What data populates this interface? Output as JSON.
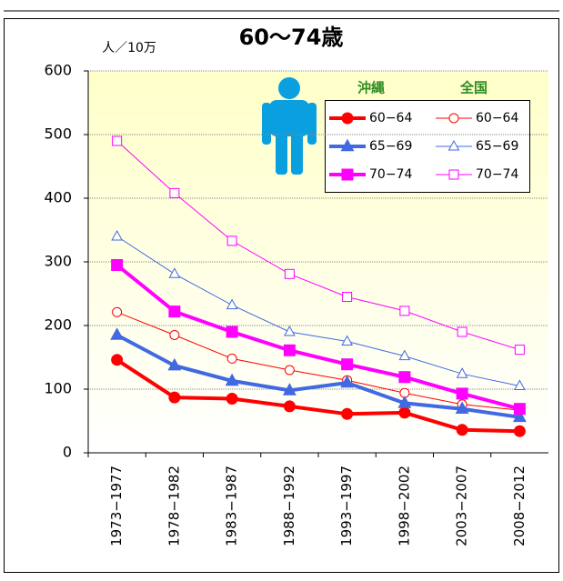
{
  "chart_data": {
    "type": "line",
    "title": "60〜74歳",
    "y_label": "人／10万",
    "categories": [
      "1973−1977",
      "1978−1982",
      "1983−1987",
      "1988−1992",
      "1993−1997",
      "1998−2002",
      "2003−2007",
      "2008−2012"
    ],
    "legend_titles": [
      "沖縄",
      "全国"
    ],
    "series": [
      {
        "name": "60−64",
        "color": "#ff0000",
        "marker": "circle",
        "hollow": false,
        "values": [
          146,
          87,
          85,
          73,
          61,
          63,
          36,
          34
        ]
      },
      {
        "name": "65−69",
        "color": "#4169e1",
        "marker": "triangle",
        "hollow": false,
        "values": [
          185,
          137,
          113,
          98,
          110,
          78,
          69,
          56
        ]
      },
      {
        "name": "70−74",
        "color": "#ff00ff",
        "marker": "square",
        "hollow": false,
        "values": [
          295,
          222,
          190,
          161,
          139,
          119,
          93,
          69
        ]
      },
      {
        "name": "60−64",
        "color": "#ff0000",
        "marker": "circle",
        "hollow": true,
        "values": [
          221,
          185,
          148,
          130,
          114,
          94,
          76,
          67
        ]
      },
      {
        "name": "65−69",
        "color": "#4169e1",
        "marker": "triangle",
        "hollow": true,
        "values": [
          340,
          281,
          232,
          190,
          175,
          152,
          124,
          105
        ]
      },
      {
        "name": "70−74",
        "color": "#ff00ff",
        "marker": "square",
        "hollow": true,
        "values": [
          490,
          408,
          333,
          281,
          245,
          223,
          190,
          162
        ]
      }
    ],
    "ylim": [
      0,
      600
    ],
    "yticks": [
      0,
      100,
      200,
      300,
      400,
      500,
      600
    ],
    "grid": true
  }
}
